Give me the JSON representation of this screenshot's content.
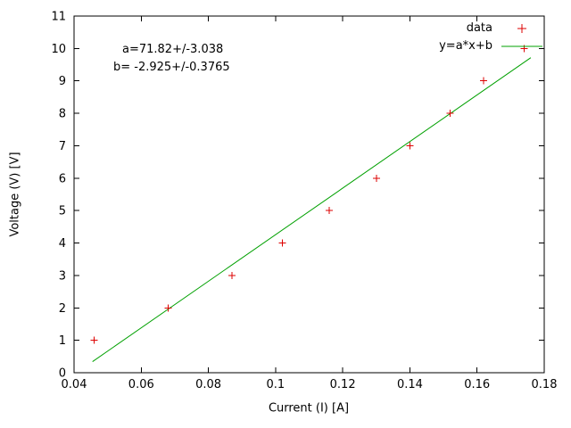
{
  "chart_data": {
    "type": "scatter",
    "title": "",
    "xlabel": "Current (I) [A]",
    "ylabel": "Voltage (V) [V]",
    "xlim": [
      0.04,
      0.18
    ],
    "ylim": [
      0,
      11
    ],
    "x_ticks": [
      0.04,
      0.06,
      0.08,
      0.1,
      0.12,
      0.14,
      0.16,
      0.18
    ],
    "x_tick_labels": [
      "0.04",
      "0.06",
      "0.08",
      "0.1",
      "0.12",
      "0.14",
      "0.16",
      "0.18"
    ],
    "y_ticks": [
      0,
      1,
      2,
      3,
      4,
      5,
      6,
      7,
      8,
      9,
      10,
      11
    ],
    "y_tick_labels": [
      "0",
      "1",
      "2",
      "3",
      "4",
      "5",
      "6",
      "7",
      "8",
      "9",
      "10",
      "11"
    ],
    "grid": false,
    "legend_position": "top-right",
    "annotations": [
      "a=71.82+/-3.038",
      "b= -2.925+/-0.3765"
    ],
    "colors": {
      "data_points": "#dd0000",
      "fit_line": "#00a000",
      "axis": "#000000"
    },
    "series": [
      {
        "name": "data",
        "kind": "points",
        "marker": "plus",
        "color": "#dd0000",
        "points": [
          [
            0.046,
            1
          ],
          [
            0.068,
            2
          ],
          [
            0.087,
            3
          ],
          [
            0.102,
            4
          ],
          [
            0.116,
            5
          ],
          [
            0.13,
            6
          ],
          [
            0.14,
            7
          ],
          [
            0.152,
            8
          ],
          [
            0.162,
            9
          ],
          [
            0.174,
            10
          ]
        ]
      },
      {
        "name": "y=a*x+b",
        "kind": "line",
        "color": "#00a000",
        "fit": {
          "a": 71.82,
          "b": -2.925
        },
        "x_range": [
          0.0455,
          0.176
        ]
      }
    ]
  }
}
